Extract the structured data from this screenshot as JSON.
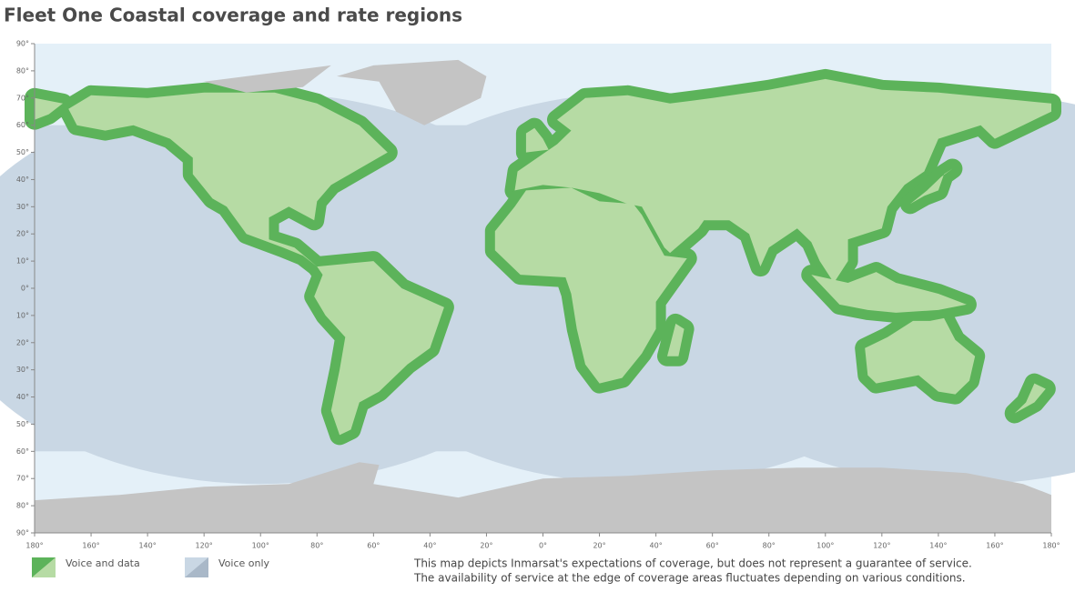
{
  "title": "Fleet One Coastal coverage and rate regions",
  "map": {
    "lat_labels": [
      "90°",
      "80°",
      "70°",
      "60°",
      "50°",
      "40°",
      "30°",
      "20°",
      "10°",
      "0°",
      "10°",
      "20°",
      "30°",
      "40°",
      "50°",
      "60°",
      "70°",
      "80°",
      "90°"
    ],
    "lon_labels": [
      "180°",
      "160°",
      "140°",
      "120°",
      "100°",
      "80°",
      "60°",
      "40°",
      "20°",
      "0°",
      "20°",
      "40°",
      "60°",
      "80°",
      "100°",
      "120°",
      "140°",
      "160°",
      "180°"
    ]
  },
  "legend": [
    {
      "label": "Voice and data"
    },
    {
      "label": "Voice only"
    }
  ],
  "note": [
    "This map depicts Inmarsat's expectations of coverage, but does not represent a guarantee of service.",
    "The availability of service at the edge of coverage areas fluctuates depending on various conditions."
  ]
}
